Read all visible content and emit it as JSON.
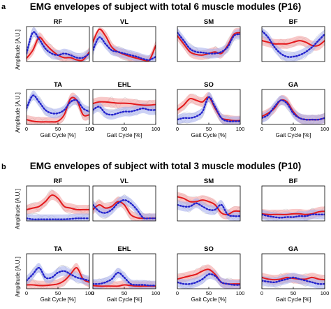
{
  "figure": {
    "section_a": {
      "letter": "a",
      "title": "EMG envelopes of subject with total 6 muscle modules (P16)"
    },
    "section_b": {
      "letter": "b",
      "title": "EMG envelopes of subject with total 3 muscle modules (P10)"
    }
  },
  "colors": {
    "red_mean": "#e3191c",
    "red_band": "#f4a3a3",
    "blue_mean": "#2222cc",
    "blue_band": "#aab2ee",
    "single_trials": "#c8c8c8",
    "axis": "#000000"
  },
  "chart_data": [
    {
      "type": "line",
      "section": "a",
      "title": "RF",
      "x": [
        0,
        10,
        20,
        30,
        40,
        50,
        60,
        70,
        80,
        90,
        100
      ],
      "xlim": [
        0,
        100
      ],
      "xticks": [],
      "xlabel": "",
      "ylabel": "Amplitude [A.U.]",
      "series": [
        {
          "style": "solid red",
          "values": [
            0.1,
            0.35,
            0.75,
            0.55,
            0.35,
            0.2,
            0.12,
            0.12,
            0.05,
            0.05,
            0.3
          ]
        },
        {
          "style": "dotted blue",
          "values": [
            0.25,
            0.9,
            0.7,
            0.4,
            0.25,
            0.2,
            0.25,
            0.2,
            0.12,
            0.12,
            0.25
          ]
        }
      ]
    },
    {
      "type": "line",
      "section": "a",
      "title": "VL",
      "x": [
        0,
        10,
        20,
        30,
        40,
        50,
        60,
        70,
        80,
        90,
        100
      ],
      "xlim": [
        0,
        100
      ],
      "xticks": [],
      "xlabel": "",
      "ylabel": "",
      "series": [
        {
          "style": "solid red",
          "values": [
            0.6,
            1.0,
            0.8,
            0.45,
            0.3,
            0.22,
            0.15,
            0.1,
            0.05,
            0.05,
            0.5
          ]
        },
        {
          "style": "dotted blue",
          "values": [
            0.35,
            0.75,
            0.55,
            0.35,
            0.3,
            0.25,
            0.2,
            0.15,
            0.08,
            0.05,
            0.15
          ]
        }
      ]
    },
    {
      "type": "line",
      "section": "a",
      "title": "SM",
      "x": [
        0,
        10,
        20,
        30,
        40,
        50,
        60,
        70,
        80,
        90,
        100
      ],
      "xlim": [
        0,
        100
      ],
      "xticks": [],
      "xlabel": "",
      "ylabel": "",
      "series": [
        {
          "style": "solid red",
          "values": [
            0.8,
            0.55,
            0.3,
            0.22,
            0.2,
            0.25,
            0.3,
            0.25,
            0.5,
            0.85,
            0.9
          ]
        },
        {
          "style": "dotted blue",
          "values": [
            0.9,
            0.65,
            0.4,
            0.3,
            0.28,
            0.25,
            0.25,
            0.3,
            0.45,
            0.8,
            0.85
          ]
        }
      ]
    },
    {
      "type": "line",
      "section": "a",
      "title": "BF",
      "x": [
        0,
        10,
        20,
        30,
        40,
        50,
        60,
        70,
        80,
        90,
        100
      ],
      "xlim": [
        0,
        100
      ],
      "xticks": [],
      "xlabel": "",
      "ylabel": "",
      "series": [
        {
          "style": "solid red",
          "values": [
            0.65,
            0.6,
            0.55,
            0.55,
            0.55,
            0.6,
            0.65,
            0.6,
            0.5,
            0.5,
            0.65
          ]
        },
        {
          "style": "dotted blue",
          "values": [
            0.95,
            0.75,
            0.45,
            0.25,
            0.15,
            0.15,
            0.2,
            0.3,
            0.45,
            0.65,
            0.85
          ]
        }
      ]
    },
    {
      "type": "line",
      "section": "a",
      "title": "TA",
      "x": [
        0,
        10,
        20,
        30,
        40,
        50,
        60,
        70,
        80,
        90,
        100
      ],
      "xlim": [
        0,
        100
      ],
      "xticks": [
        "0",
        "50",
        "100"
      ],
      "xlabel": "Gait Cycle [%]",
      "ylabel": "Amplitude [A.U.]",
      "series": [
        {
          "style": "solid red",
          "values": [
            0.15,
            0.1,
            0.08,
            0.08,
            0.08,
            0.1,
            0.3,
            0.8,
            0.75,
            0.3,
            0.3
          ]
        },
        {
          "style": "dotted blue",
          "values": [
            0.5,
            0.9,
            0.7,
            0.45,
            0.35,
            0.35,
            0.45,
            0.7,
            0.75,
            0.5,
            0.4
          ]
        }
      ]
    },
    {
      "type": "line",
      "section": "a",
      "title": "EHL",
      "x": [
        0,
        10,
        20,
        30,
        40,
        50,
        60,
        70,
        80,
        90,
        100
      ],
      "xlim": [
        0,
        100
      ],
      "xticks": [
        "0",
        "50",
        "100"
      ],
      "xlabel": "Gait Cycle [%]",
      "ylabel": "",
      "series": [
        {
          "style": "solid red",
          "values": [
            0.65,
            0.7,
            0.7,
            0.68,
            0.66,
            0.66,
            0.65,
            0.62,
            0.6,
            0.6,
            0.62
          ]
        },
        {
          "style": "dotted blue",
          "values": [
            0.45,
            0.55,
            0.35,
            0.3,
            0.35,
            0.4,
            0.4,
            0.45,
            0.5,
            0.45,
            0.45
          ]
        }
      ]
    },
    {
      "type": "line",
      "section": "a",
      "title": "SO",
      "x": [
        0,
        10,
        20,
        30,
        40,
        50,
        60,
        70,
        80,
        90,
        100
      ],
      "xlim": [
        0,
        100
      ],
      "xticks": [
        "0",
        "50",
        "100"
      ],
      "xlabel": "Gait Cycle [%]",
      "ylabel": "",
      "series": [
        {
          "style": "solid red",
          "values": [
            0.45,
            0.6,
            0.8,
            0.75,
            0.7,
            0.85,
            0.5,
            0.2,
            0.15,
            0.12,
            0.12
          ]
        },
        {
          "style": "dotted blue",
          "values": [
            0.15,
            0.2,
            0.2,
            0.25,
            0.4,
            0.85,
            0.55,
            0.2,
            0.1,
            0.1,
            0.1
          ]
        }
      ]
    },
    {
      "type": "line",
      "section": "a",
      "title": "GA",
      "x": [
        0,
        10,
        20,
        30,
        40,
        50,
        60,
        70,
        80,
        90,
        100
      ],
      "xlim": [
        0,
        100
      ],
      "xticks": [
        "0",
        "50",
        "100"
      ],
      "xlabel": "Gait Cycle [%]",
      "ylabel": "",
      "series": [
        {
          "style": "solid red",
          "values": [
            0.25,
            0.35,
            0.5,
            0.75,
            0.7,
            0.4,
            0.2,
            0.15,
            0.15,
            0.15,
            0.2
          ]
        },
        {
          "style": "dotted blue",
          "values": [
            0.2,
            0.3,
            0.55,
            0.75,
            0.65,
            0.35,
            0.2,
            0.15,
            0.15,
            0.15,
            0.2
          ]
        }
      ]
    },
    {
      "type": "line",
      "section": "b",
      "title": "RF",
      "x": [
        0,
        10,
        20,
        30,
        40,
        50,
        60,
        70,
        80,
        90,
        100
      ],
      "xlim": [
        0,
        100
      ],
      "xticks": [],
      "xlabel": "",
      "ylabel": "Amplitude [A.U.]",
      "series": [
        {
          "style": "solid red",
          "values": [
            0.35,
            0.4,
            0.45,
            0.6,
            0.8,
            0.7,
            0.45,
            0.4,
            0.35,
            0.35,
            0.35
          ]
        },
        {
          "style": "dotted blue",
          "values": [
            0.08,
            0.05,
            0.05,
            0.05,
            0.05,
            0.05,
            0.05,
            0.06,
            0.08,
            0.08,
            0.08
          ]
        }
      ]
    },
    {
      "type": "line",
      "section": "b",
      "title": "VL",
      "x": [
        0,
        10,
        20,
        30,
        40,
        50,
        60,
        70,
        80,
        90,
        100
      ],
      "xlim": [
        0,
        100
      ],
      "xticks": [],
      "xlabel": "",
      "ylabel": "",
      "series": [
        {
          "style": "solid red",
          "values": [
            0.35,
            0.5,
            0.4,
            0.45,
            0.6,
            0.5,
            0.2,
            0.1,
            0.08,
            0.08,
            0.08
          ]
        },
        {
          "style": "dotted blue",
          "values": [
            0.5,
            0.3,
            0.25,
            0.35,
            0.55,
            0.65,
            0.55,
            0.35,
            0.1,
            0.08,
            0.08
          ]
        }
      ]
    },
    {
      "type": "line",
      "section": "b",
      "title": "SM",
      "x": [
        0,
        10,
        20,
        30,
        40,
        50,
        60,
        70,
        80,
        90,
        100
      ],
      "xlim": [
        0,
        100
      ],
      "xticks": [],
      "xlabel": "",
      "ylabel": "",
      "series": [
        {
          "style": "solid red",
          "values": [
            0.75,
            0.7,
            0.6,
            0.6,
            0.65,
            0.6,
            0.5,
            0.25,
            0.2,
            0.3,
            0.3
          ]
        },
        {
          "style": "dotted blue",
          "values": [
            0.5,
            0.45,
            0.45,
            0.55,
            0.45,
            0.35,
            0.35,
            0.5,
            0.2,
            0.15,
            0.15
          ]
        }
      ]
    },
    {
      "type": "line",
      "section": "b",
      "title": "BF",
      "x": [
        0,
        10,
        20,
        30,
        40,
        50,
        60,
        70,
        80,
        90,
        100
      ],
      "xlim": [
        0,
        100
      ],
      "xticks": [],
      "xlabel": "",
      "ylabel": "",
      "series": [
        {
          "style": "solid red",
          "values": [
            0.22,
            0.2,
            0.2,
            0.2,
            0.2,
            0.22,
            0.22,
            0.2,
            0.22,
            0.28,
            0.3
          ]
        },
        {
          "style": "dotted blue",
          "values": [
            0.2,
            0.15,
            0.12,
            0.1,
            0.12,
            0.12,
            0.15,
            0.15,
            0.2,
            0.2,
            0.2
          ]
        }
      ]
    },
    {
      "type": "line",
      "section": "b",
      "title": "TA",
      "x": [
        0,
        10,
        20,
        30,
        40,
        50,
        60,
        70,
        80,
        90,
        100
      ],
      "xlim": [
        0,
        100
      ],
      "xticks": [
        "0",
        "50",
        "100"
      ],
      "xlabel": "Gait Cycle [%]",
      "ylabel": "Amplitude [A.U.]",
      "series": [
        {
          "style": "solid red",
          "values": [
            0.12,
            0.12,
            0.1,
            0.1,
            0.12,
            0.15,
            0.25,
            0.45,
            0.65,
            0.3,
            0.2
          ]
        },
        {
          "style": "dotted blue",
          "values": [
            0.25,
            0.45,
            0.65,
            0.35,
            0.35,
            0.5,
            0.55,
            0.45,
            0.35,
            0.3,
            0.25
          ]
        }
      ]
    },
    {
      "type": "line",
      "section": "b",
      "title": "EHL",
      "x": [
        0,
        10,
        20,
        30,
        40,
        50,
        60,
        70,
        80,
        90,
        100
      ],
      "xlim": [
        0,
        100
      ],
      "xticks": [
        "0",
        "50",
        "100"
      ],
      "xlabel": "Gait Cycle [%]",
      "ylabel": "",
      "series": [
        {
          "style": "solid red",
          "values": [
            0.1,
            0.08,
            0.08,
            0.08,
            0.08,
            0.12,
            0.1,
            0.08,
            0.08,
            0.08,
            0.08
          ]
        },
        {
          "style": "dotted blue",
          "values": [
            0.15,
            0.15,
            0.2,
            0.3,
            0.5,
            0.35,
            0.15,
            0.12,
            0.12,
            0.1,
            0.1
          ]
        }
      ]
    },
    {
      "type": "line",
      "section": "b",
      "title": "SO",
      "x": [
        0,
        10,
        20,
        30,
        40,
        50,
        60,
        70,
        80,
        90,
        100
      ],
      "xlim": [
        0,
        100
      ],
      "xticks": [
        "0",
        "50",
        "100"
      ],
      "xlabel": "Gait Cycle [%]",
      "ylabel": "",
      "series": [
        {
          "style": "solid red",
          "values": [
            0.3,
            0.35,
            0.4,
            0.45,
            0.55,
            0.6,
            0.45,
            0.2,
            0.15,
            0.15,
            0.15
          ]
        },
        {
          "style": "dotted blue",
          "values": [
            0.2,
            0.15,
            0.15,
            0.2,
            0.3,
            0.45,
            0.4,
            0.2,
            0.15,
            0.12,
            0.12
          ]
        }
      ]
    },
    {
      "type": "line",
      "section": "b",
      "title": "GA",
      "x": [
        0,
        10,
        20,
        30,
        40,
        50,
        60,
        70,
        80,
        90,
        100
      ],
      "xlim": [
        0,
        100
      ],
      "xticks": [
        "0",
        "50",
        "100"
      ],
      "xlabel": "Gait Cycle [%]",
      "ylabel": "",
      "series": [
        {
          "style": "solid red",
          "values": [
            0.35,
            0.3,
            0.28,
            0.3,
            0.35,
            0.32,
            0.3,
            0.3,
            0.35,
            0.3,
            0.28
          ]
        },
        {
          "style": "dotted blue",
          "values": [
            0.25,
            0.22,
            0.2,
            0.25,
            0.3,
            0.35,
            0.3,
            0.25,
            0.2,
            0.15,
            0.15
          ]
        }
      ]
    }
  ]
}
